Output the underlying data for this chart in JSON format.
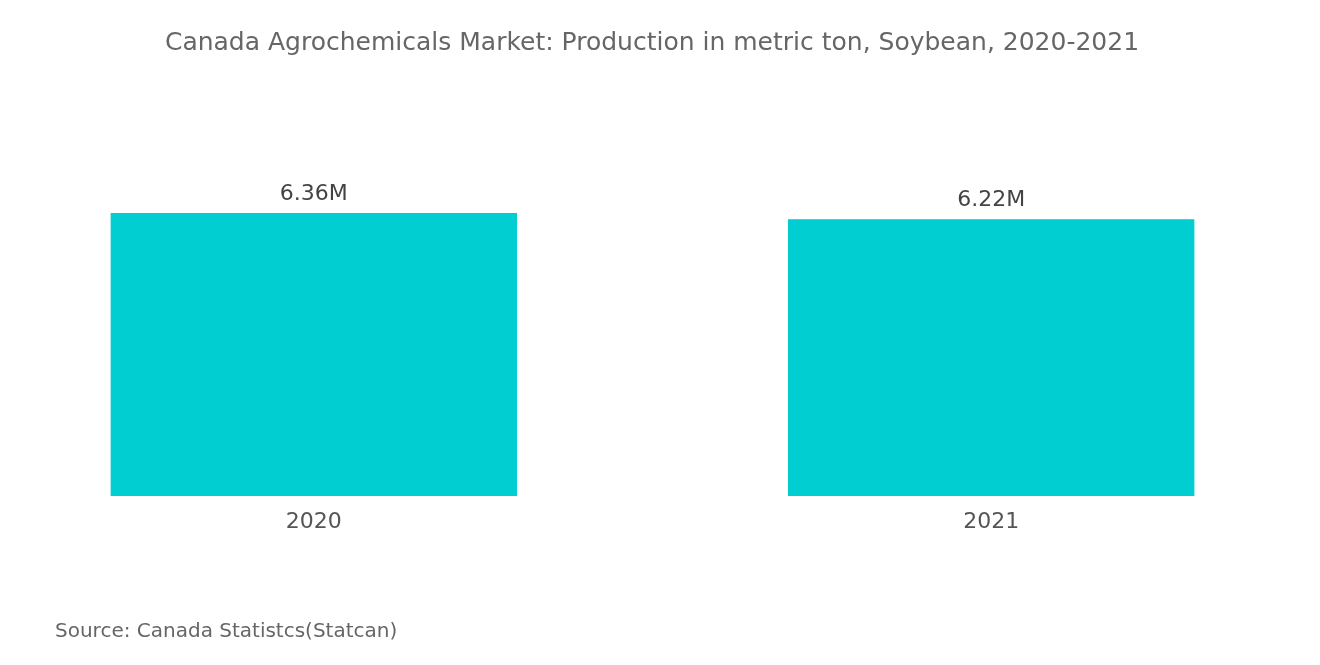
{
  "chart_data": {
    "type": "bar",
    "title": "Canada Agrochemicals Market: Production in metric ton, Soybean, 2020-2021",
    "categories": [
      "2020",
      "2021"
    ],
    "values": [
      6.36,
      6.22
    ],
    "value_labels": [
      "6.36M",
      "6.22M"
    ],
    "color": "#00ced1",
    "annotations": [
      "Source:  Canada Statistcs(Statcan)"
    ]
  }
}
